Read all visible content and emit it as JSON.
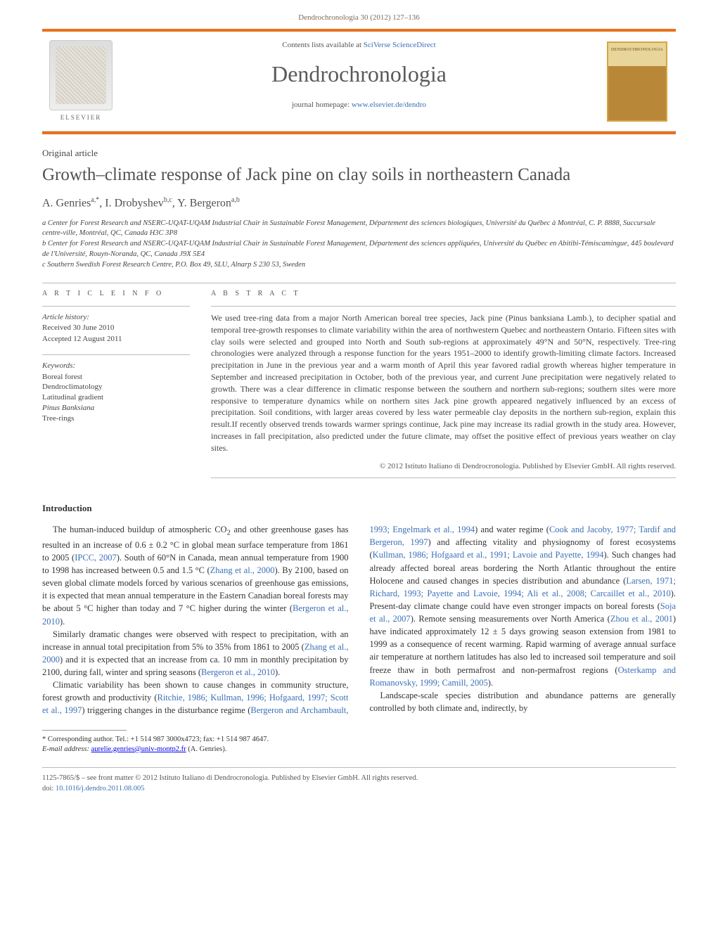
{
  "header": {
    "running_head": "Dendrochronologia 30 (2012) 127–136",
    "contents_prefix": "Contents lists available at ",
    "contents_link": "SciVerse ScienceDirect",
    "journal_title": "Dendrochronologia",
    "homepage_prefix": "journal homepage: ",
    "homepage_link": "www.elsevier.de/dendro",
    "publisher_mark": "ELSEVIER"
  },
  "article": {
    "type": "Original article",
    "title": "Growth–climate response of Jack pine on clay soils in northeastern Canada",
    "authors_html": "A. Genries",
    "author_a_sup": "a,*",
    "author_b": ", I. Drobyshev",
    "author_b_sup": "b,c",
    "author_c": ", Y. Bergeron",
    "author_c_sup": "a,b"
  },
  "affiliations": {
    "a": "a Center for Forest Research and NSERC-UQAT-UQAM Industrial Chair in Sustainable Forest Management, Département des sciences biologiques, Université du Québec à Montréal, C. P. 8888, Succursale centre-ville, Montréal, QC, Canada H3C 3P8",
    "b": "b Center for Forest Research and NSERC-UQAT-UQAM Industrial Chair in Sustainable Forest Management, Département des sciences appliquées, Université du Québec en Abitibi-Témiscamingue, 445 boulevard de l'Université, Rouyn-Noranda, QC, Canada J9X 5E4",
    "c": "c Southern Swedish Forest Research Centre, P.O. Box 49, SLU, Alnarp S 230 53, Sweden"
  },
  "info": {
    "section_label": "A R T I C L E  I N F O",
    "history_label": "Article history:",
    "received": "Received 30 June 2010",
    "accepted": "Accepted 12 August 2011",
    "keywords_label": "Keywords:",
    "keywords": [
      "Boreal forest",
      "Dendroclimatology",
      "Latitudinal gradient",
      "Pinus Banksiana",
      "Tree-rings"
    ]
  },
  "abstract": {
    "section_label": "A B S T R A C T",
    "text": "We used tree-ring data from a major North American boreal tree species, Jack pine (Pinus banksiana Lamb.), to decipher spatial and temporal tree-growth responses to climate variability within the area of northwestern Quebec and northeastern Ontario. Fifteen sites with clay soils were selected and grouped into North and South sub-regions at approximately 49°N and 50°N, respectively. Tree-ring chronologies were analyzed through a response function for the years 1951–2000 to identify growth-limiting climate factors. Increased precipitation in June in the previous year and a warm month of April this year favored radial growth whereas higher temperature in September and increased precipitation in October, both of the previous year, and current June precipitation were negatively related to growth. There was a clear difference in climatic response between the southern and northern sub-regions; southern sites were more responsive to temperature dynamics while on northern sites Jack pine growth appeared negatively influenced by an excess of precipitation. Soil conditions, with larger areas covered by less water permeable clay deposits in the northern sub-region, explain this result.If recently observed trends towards warmer springs continue, Jack pine may increase its radial growth in the study area. However, increases in fall precipitation, also predicted under the future climate, may offset the positive effect of previous years weather on clay sites.",
    "copyright": "© 2012 Istituto Italiano di Dendrocronologia. Published by Elsevier GmbH. All rights reserved."
  },
  "intro": {
    "heading": "Introduction",
    "p1_a": "The human-induced buildup of atmospheric CO",
    "p1_sub": "2",
    "p1_b": " and other greenhouse gases has resulted in an increase of 0.6 ± 0.2 °C in global mean surface temperature from 1861 to 2005 (",
    "p1_link1": "IPCC, 2007",
    "p1_c": "). South of 60°N in Canada, mean annual temperature from 1900 to 1998 has increased between 0.5 and 1.5 °C (",
    "p1_link2": "Zhang et al., 2000",
    "p1_d": "). By 2100, based on seven global climate models forced by various scenarios of greenhouse gas emissions, it is expected that mean annual temperature in the Eastern Canadian boreal forests may be about 5 °C higher than today and 7 °C higher during the winter (",
    "p1_link3": "Bergeron et al., 2010",
    "p1_e": ").",
    "p2_a": "Similarly dramatic changes were observed with respect to precipitation, with an increase in annual total precipitation from 5% to 35% from 1861 to 2005 (",
    "p2_link1": "Zhang et al., 2000",
    "p2_b": ") and it is expected that an increase from ca. 10 mm in monthly precipitation by 2100, during fall, winter and spring seasons (",
    "p2_link2": "Bergeron et al., 2010",
    "p2_c": ").",
    "p3_a": "Climatic variability has been shown to cause changes in community structure, forest growth and productivity (",
    "p3_link1": "Ritchie, 1986; Kullman, 1996; Hofgaard, 1997; Scott et al., 1997",
    "p3_b": ") triggering changes in the disturbance regime (",
    "p3_link2": "Bergeron and Archambault, 1993; Engelmark et al., 1994",
    "p3_c": ") and water regime (",
    "p3_link3": "Cook and Jacoby, 1977; Tardif and Bergeron, 1997",
    "p3_d": ") and affecting vitality and physiognomy of forest ecosystems (",
    "p3_link4": "Kullman, 1986; Hofgaard et al., 1991; Lavoie and Payette, 1994",
    "p3_e": "). Such changes had already affected boreal areas bordering the North Atlantic throughout the entire Holocene and caused changes in species distribution and abundance (",
    "p3_link5": "Larsen, 1971; Richard, 1993; Payette and Lavoie, 1994; Ali et al., 2008; Carcaillet et al., 2010",
    "p3_f": "). Present-day climate change could have even stronger impacts on boreal forests (",
    "p3_link6": "Soja et al., 2007",
    "p3_g": "). Remote sensing measurements over North America (",
    "p3_link7": "Zhou et al., 2001",
    "p3_h": ") have indicated approximately 12 ± 5 days growing season extension from 1981 to 1999 as a consequence of recent warming. Rapid warming of average annual surface air temperature at northern latitudes has also led to increased soil temperature and soil freeze thaw in both permafrost and non-permafrost regions (",
    "p3_link8": "Osterkamp and Romanovsky, 1999; Camill, 2005",
    "p3_i": ").",
    "p4": "Landscape-scale species distribution and abundance patterns are generally controlled by both climate and, indirectly, by"
  },
  "footnote": {
    "corr": "* Corresponding author. Tel.: +1 514 987 3000x4723; fax: +1 514 987 4647.",
    "email_label": "E-mail address: ",
    "email": "aurelie.genries@univ-montp2.fr",
    "email_suffix": " (A. Genries)."
  },
  "footer": {
    "issn_line": "1125-7865/$ – see front matter © 2012 Istituto Italiano di Dendrocronologia. Published by Elsevier GmbH. All rights reserved.",
    "doi_label": "doi:",
    "doi": "10.1016/j.dendro.2011.08.005"
  },
  "colors": {
    "accent": "#e8711c",
    "link": "#3a6fb7",
    "text": "#333333"
  }
}
